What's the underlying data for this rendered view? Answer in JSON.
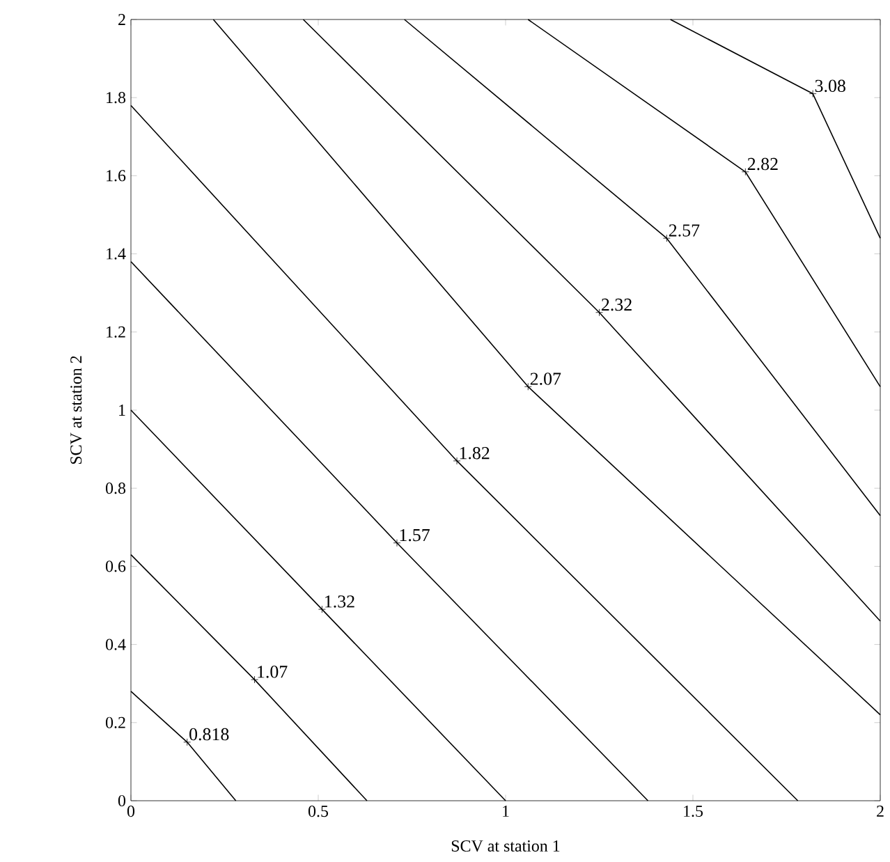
{
  "chart_data": {
    "type": "line",
    "xlabel": "SCV at station 1",
    "ylabel": "SCV at station 2",
    "xlim": [
      0,
      2
    ],
    "ylim": [
      0,
      2
    ],
    "xticks": [
      0,
      0.5,
      1,
      1.5,
      2
    ],
    "yticks": [
      0,
      0.2,
      0.4,
      0.6,
      0.8,
      1,
      1.2,
      1.4,
      1.6,
      1.8,
      2
    ],
    "grid": false,
    "line_style": "solid",
    "series": [
      {
        "color": "#000000",
        "x": [
          0,
          0.15,
          0.28
        ],
        "values": [
          0.28,
          0.15,
          0
        ]
      },
      {
        "color": "#000000",
        "x": [
          0,
          0.33,
          0.63
        ],
        "values": [
          0.63,
          0.31,
          0
        ]
      },
      {
        "color": "#000000",
        "x": [
          0,
          0.51,
          1.0
        ],
        "values": [
          1.0,
          0.49,
          0
        ]
      },
      {
        "color": "#000000",
        "x": [
          0,
          0.71,
          1.38
        ],
        "values": [
          1.38,
          0.66,
          0
        ]
      },
      {
        "color": "#000000",
        "x": [
          0,
          0.87,
          1.78
        ],
        "values": [
          1.78,
          0.87,
          0
        ]
      },
      {
        "color": "#000000",
        "x": [
          0.22,
          1.06,
          2
        ],
        "values": [
          2,
          1.06,
          0.22
        ]
      },
      {
        "color": "#000000",
        "x": [
          0.46,
          1.25,
          2
        ],
        "values": [
          2,
          1.25,
          0.46
        ]
      },
      {
        "color": "#000000",
        "x": [
          0.73,
          1.43,
          2
        ],
        "values": [
          2,
          1.44,
          0.73
        ]
      },
      {
        "color": "#000000",
        "x": [
          1.06,
          1.64,
          2
        ],
        "values": [
          2,
          1.61,
          1.06
        ]
      },
      {
        "color": "#000000",
        "x": [
          1.44,
          1.82,
          2
        ],
        "values": [
          2,
          1.81,
          1.44
        ]
      }
    ],
    "annotations": [
      {
        "text": "0.818",
        "x": 0.15,
        "y": 0.15
      },
      {
        "text": "1.07",
        "x": 0.33,
        "y": 0.31
      },
      {
        "text": "1.32",
        "x": 0.51,
        "y": 0.49
      },
      {
        "text": "1.57",
        "x": 0.71,
        "y": 0.66
      },
      {
        "text": "1.82",
        "x": 0.87,
        "y": 0.87
      },
      {
        "text": "2.07",
        "x": 1.06,
        "y": 1.06
      },
      {
        "text": "2.32",
        "x": 1.25,
        "y": 1.25
      },
      {
        "text": "2.57",
        "x": 1.43,
        "y": 1.44
      },
      {
        "text": "2.82",
        "x": 1.64,
        "y": 1.61
      },
      {
        "text": "3.08",
        "x": 1.82,
        "y": 1.81
      }
    ]
  }
}
